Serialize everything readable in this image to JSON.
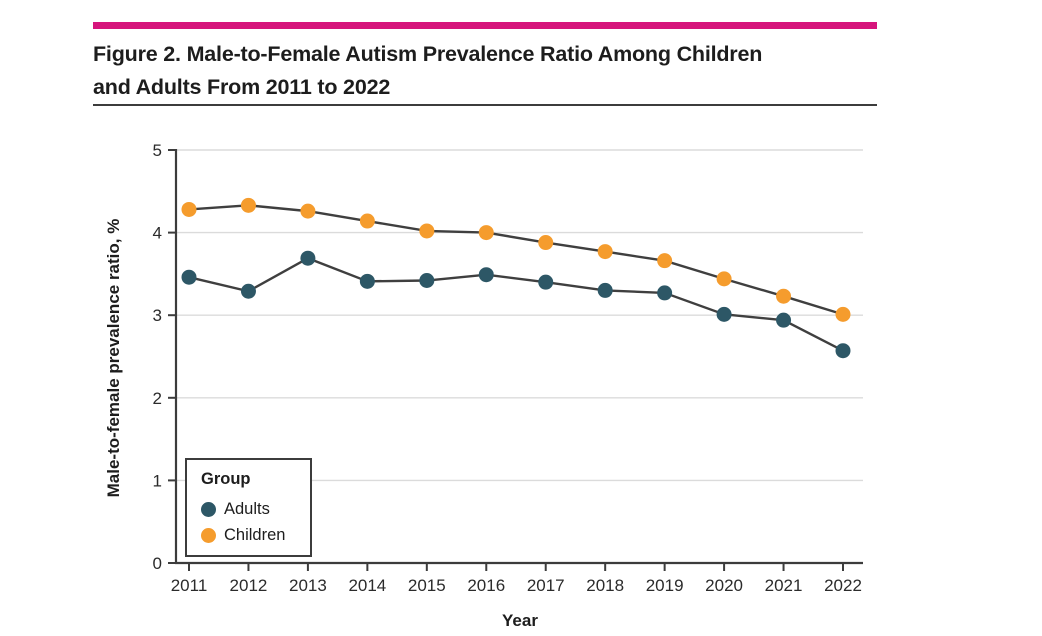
{
  "header": {
    "title_line1": "Figure 2. Male-to-Female Autism Prevalence Ratio Among Children",
    "title_line2": "and Adults From 2011 to 2022"
  },
  "colors": {
    "accent_bar": "#D6157C",
    "adults": "#2D5766",
    "children": "#F59C2D",
    "line": "#3F3F3F",
    "grid": "#DBDBDB",
    "axis": "#3C3C3C",
    "text": "#2B2B2B"
  },
  "chart_data": {
    "type": "line",
    "x": [
      "2011",
      "2012",
      "2013",
      "2014",
      "2015",
      "2016",
      "2017",
      "2018",
      "2019",
      "2020",
      "2021",
      "2022"
    ],
    "series": [
      {
        "name": "Adults",
        "color_key": "adults",
        "values": [
          3.46,
          3.29,
          3.69,
          3.41,
          3.42,
          3.49,
          3.4,
          3.3,
          3.27,
          3.01,
          2.94,
          2.57
        ]
      },
      {
        "name": "Children",
        "color_key": "children",
        "values": [
          4.28,
          4.33,
          4.26,
          4.14,
          4.02,
          4.0,
          3.88,
          3.77,
          3.66,
          3.44,
          3.23,
          3.01
        ]
      }
    ],
    "xlabel": "Year",
    "ylabel": "Male-to-female prevalence ratio, %",
    "ylim": [
      0,
      5
    ],
    "yticks": [
      0,
      1,
      2,
      3,
      4,
      5
    ],
    "grid": true,
    "legend": {
      "title": "Group",
      "position": "lower-left"
    }
  }
}
